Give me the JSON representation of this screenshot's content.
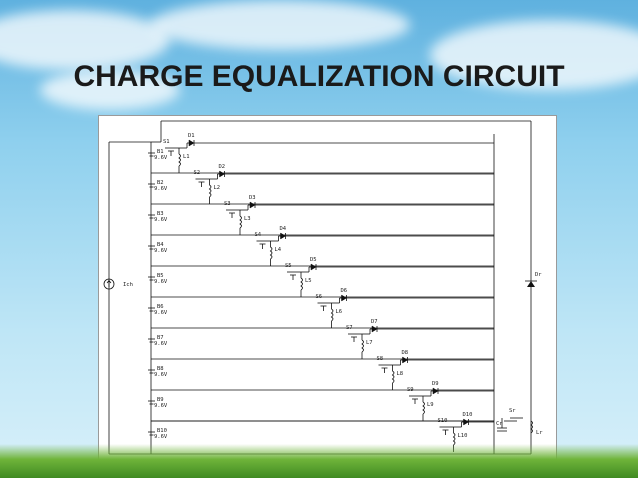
{
  "slide": {
    "title": "CHARGE EQUALIZATION CIRCUIT"
  },
  "circuit": {
    "source_label": "Ich",
    "battery_voltage": "9.6V",
    "batteries": [
      "B1",
      "B2",
      "B3",
      "B4",
      "B5",
      "B6",
      "B7",
      "B8",
      "B9",
      "B10"
    ],
    "switches": [
      "S1",
      "S2",
      "S3",
      "S4",
      "S5",
      "S6",
      "S7",
      "S8",
      "S9",
      "S10"
    ],
    "inductors": [
      "L1",
      "L2",
      "L3",
      "L4",
      "L5",
      "L6",
      "L7",
      "L8",
      "L9",
      "L10"
    ],
    "diodes": [
      "D1",
      "D2",
      "D3",
      "D4",
      "D5",
      "D6",
      "D7",
      "D8",
      "D9",
      "D10"
    ],
    "extra": {
      "switch": "Sr",
      "capacitor": "Cr",
      "inductor": "Lr",
      "diode": "Dr"
    }
  },
  "colors": {
    "background_sky": "#8fd0ee",
    "title": "#1a1a1a",
    "grass": "#4e9a2a",
    "wire": "#111111"
  }
}
